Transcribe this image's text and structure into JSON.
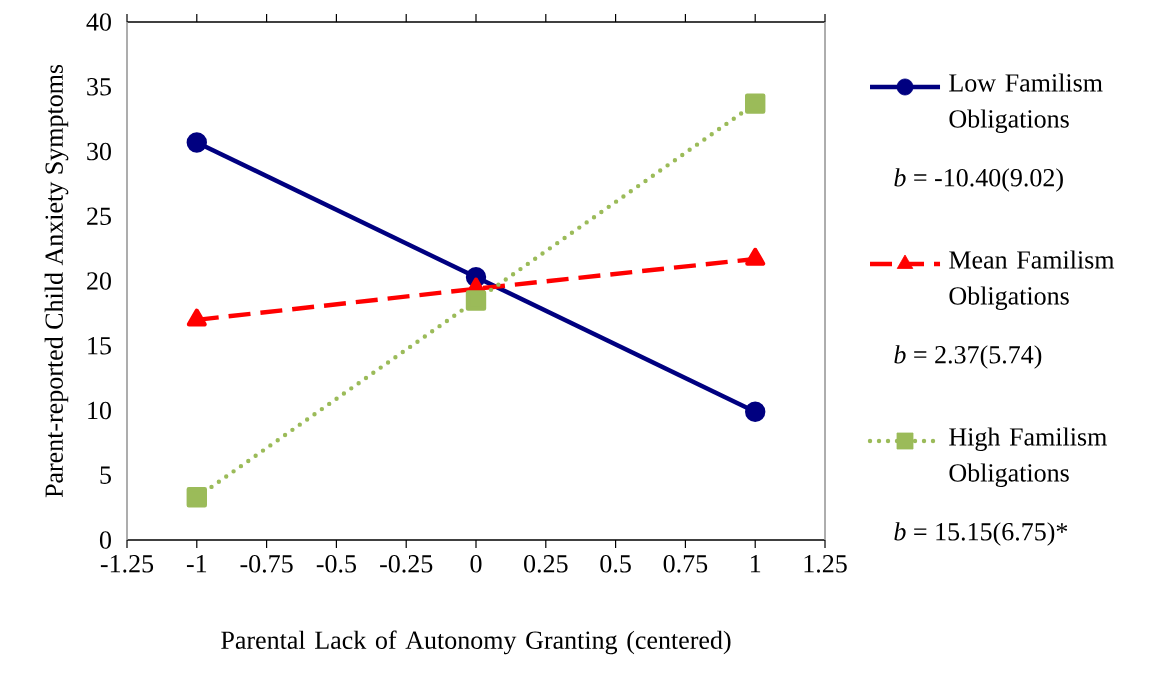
{
  "chart_data": {
    "type": "line",
    "x": [
      -1,
      0,
      1
    ],
    "xlabel": "Parental Lack of Autonomy Granting (centered)",
    "ylabel": "Parent-reported Child Anxiety Symptoms",
    "xlim": [
      -1.25,
      1.25
    ],
    "xticks": [
      -1.25,
      -1,
      -0.75,
      -0.5,
      -0.25,
      0,
      0.25,
      0.5,
      0.75,
      1,
      1.25
    ],
    "ylim": [
      0,
      40
    ],
    "yticks": [
      0,
      5,
      10,
      15,
      20,
      25,
      30,
      35,
      40
    ],
    "legend": "right",
    "series": [
      {
        "name": "Low Familism Obligations",
        "color": "#000080",
        "values": [
          30.7,
          20.3,
          9.9
        ],
        "marker": "circle",
        "line_style": "solid"
      },
      {
        "name": "Mean Familism Obligations",
        "color": "#ff0000",
        "values": [
          17.0,
          19.4,
          21.7
        ],
        "marker": "triangle",
        "line_style": "dashed"
      },
      {
        "name": "High Familism Obligations",
        "color": "#9bbb59",
        "values": [
          3.3,
          18.5,
          33.7
        ],
        "marker": "square",
        "line_style": "dotted"
      }
    ],
    "annotations": [
      "*b* = -10.40(9.02)",
      "*b* = 2.37(5.74)",
      "*b* = 15.15(6.75)*"
    ]
  }
}
